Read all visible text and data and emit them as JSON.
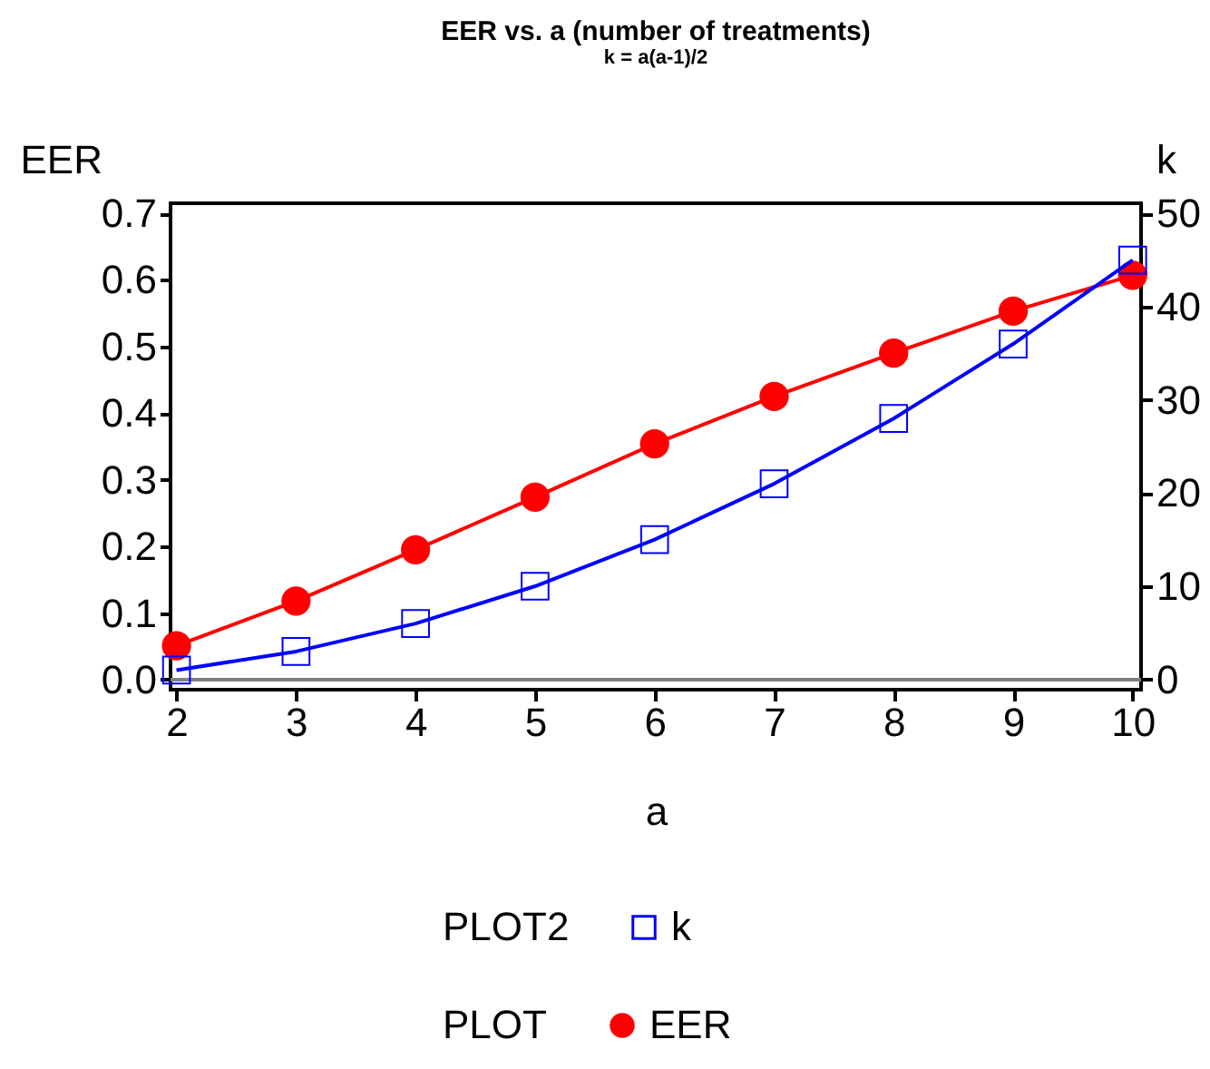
{
  "chart_data": {
    "type": "line",
    "title": "EER vs. a (number of treatments)",
    "subtitle": "k = a(a-1)/2",
    "xlabel": "a",
    "ylabel": "EER",
    "y2label": "k",
    "legend_title": "PLOT",
    "x": [
      2,
      3,
      4,
      5,
      6,
      7,
      8,
      9,
      10
    ],
    "series": [
      {
        "name": "EER",
        "color": "#ff0000",
        "marker": "circle",
        "values": [
          0.051,
          0.118,
          0.195,
          0.274,
          0.354,
          0.425,
          0.49,
          0.553,
          0.607
        ]
      },
      {
        "name": "k",
        "color": "#0000ff",
        "marker": "square",
        "axis": "y2",
        "values": [
          1,
          3,
          6,
          10,
          15,
          21,
          28,
          36,
          45
        ]
      }
    ],
    "annotations": [
      "PLOT2"
    ],
    "xlim": [
      1.95,
      10.07
    ],
    "xticks": [
      2,
      3,
      4,
      5,
      6,
      7,
      8,
      9,
      10
    ],
    "ylim": [
      -0.015,
      0.715
    ],
    "yticks": [
      {
        "value": 0,
        "label": "0.0"
      },
      0.1,
      0.2,
      0.3,
      0.4,
      0.5,
      0.6,
      0.7
    ],
    "y2lim": [
      -1.1,
      51.1
    ],
    "y2ticks": [
      0,
      10,
      20,
      30,
      40,
      50
    ],
    "ref_lines": [
      {
        "axis": "y",
        "value": 0,
        "color": "#808080"
      }
    ],
    "grid": false,
    "legend": "bottom",
    "line_style": "solid"
  }
}
